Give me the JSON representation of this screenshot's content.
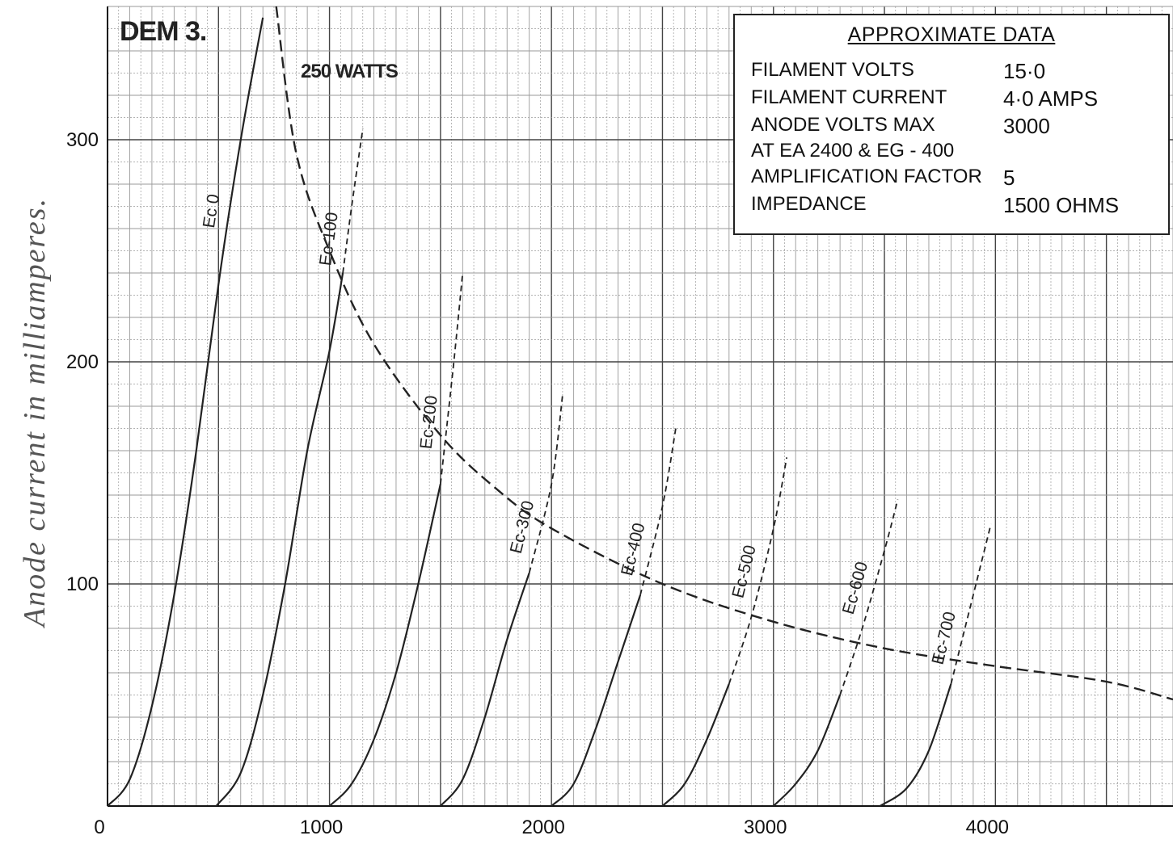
{
  "chart_data": {
    "type": "line",
    "title": "DEM 3.",
    "subtitle": "",
    "xlabel": "",
    "ylabel": "Anode current in milliamperes.",
    "xlim": [
      0,
      4800
    ],
    "ylim": [
      0,
      360
    ],
    "xticks": [
      0,
      1000,
      2000,
      3000,
      4000
    ],
    "yticks": [
      100,
      200,
      300
    ],
    "grid": true,
    "series": [
      {
        "name": "Ec 0",
        "style": "solid",
        "x": [
          0,
          100,
          200,
          300,
          400,
          500,
          600,
          700
        ],
        "y": [
          0,
          12,
          45,
          95,
          160,
          235,
          300,
          355
        ]
      },
      {
        "name": "Ec-100",
        "style": "solid",
        "x": [
          490,
          600,
          700,
          800,
          900,
          1000,
          1060,
          1100,
          1150
        ],
        "y": [
          0,
          15,
          50,
          100,
          160,
          205,
          240,
          270,
          305
        ],
        "dashed_from": 1060
      },
      {
        "name": "Ec-200",
        "style": "solid",
        "x": [
          1000,
          1100,
          1200,
          1300,
          1400,
          1500,
          1560,
          1600
        ],
        "y": [
          0,
          10,
          30,
          60,
          100,
          145,
          200,
          240
        ],
        "dashed_from": 1500
      },
      {
        "name": "Ec-300",
        "style": "solid",
        "x": [
          1500,
          1600,
          1700,
          1800,
          1900,
          2000,
          2050
        ],
        "y": [
          0,
          12,
          40,
          75,
          105,
          145,
          185
        ],
        "dashed_from": 1960
      },
      {
        "name": "Ec-400",
        "style": "solid",
        "x": [
          2000,
          2100,
          2200,
          2300,
          2400,
          2500,
          2560
        ],
        "y": [
          0,
          10,
          35,
          65,
          95,
          135,
          170
        ],
        "dashed_from": 2460
      },
      {
        "name": "Ec-500",
        "style": "solid",
        "x": [
          2500,
          2600,
          2700,
          2800,
          2900,
          3000,
          3060
        ],
        "y": [
          0,
          10,
          30,
          55,
          85,
          125,
          157
        ],
        "dashed_from": 2880
      },
      {
        "name": "Ec-600",
        "style": "solid",
        "x": [
          3000,
          3100,
          3200,
          3300,
          3400,
          3500,
          3560
        ],
        "y": [
          0,
          10,
          25,
          50,
          80,
          115,
          138
        ],
        "dashed_from": 3350
      },
      {
        "name": "Ec-700",
        "style": "solid",
        "x": [
          3480,
          3600,
          3700,
          3800,
          3900,
          3980
        ],
        "y": [
          0,
          8,
          25,
          55,
          95,
          127
        ],
        "dashed_from": 3840
      },
      {
        "name": "250 WATTS",
        "style": "dashed",
        "x": [
          760,
          850,
          1000,
          1200,
          1500,
          1750,
          2000,
          2500,
          3000,
          3500,
          4000,
          4500,
          4800
        ],
        "y": [
          360,
          294,
          250,
          208,
          167,
          143,
          125,
          100,
          83,
          71,
          63,
          56,
          48
        ]
      }
    ],
    "annotations": [
      "DEM 3.",
      "250 WATTS"
    ],
    "curve_labels": [
      "Ec 0",
      "Ec-100",
      "Ec-200",
      "Ec-300",
      "Ec-400",
      "Ec-500",
      "Ec-600",
      "Ec-700"
    ]
  },
  "info_box": {
    "title": "APPROXIMATE DATA",
    "rows": [
      {
        "key": "FILAMENT VOLTS",
        "value": "15·0"
      },
      {
        "key": "FILAMENT CURRENT",
        "value": "4·0 AMPS"
      },
      {
        "key": "ANODE VOLTS MAX",
        "value": "3000"
      },
      {
        "key": "AT EA 2400 & EG - 400",
        "value": ""
      },
      {
        "key": "AMPLIFICATION FACTOR",
        "value": "5"
      },
      {
        "key": "IMPEDANCE",
        "value": "1500 OHMS"
      }
    ]
  },
  "colors": {
    "grid_major": "#444444",
    "grid_minor": "#9a9a9a",
    "curve": "#222222",
    "background": "#ffffff"
  }
}
